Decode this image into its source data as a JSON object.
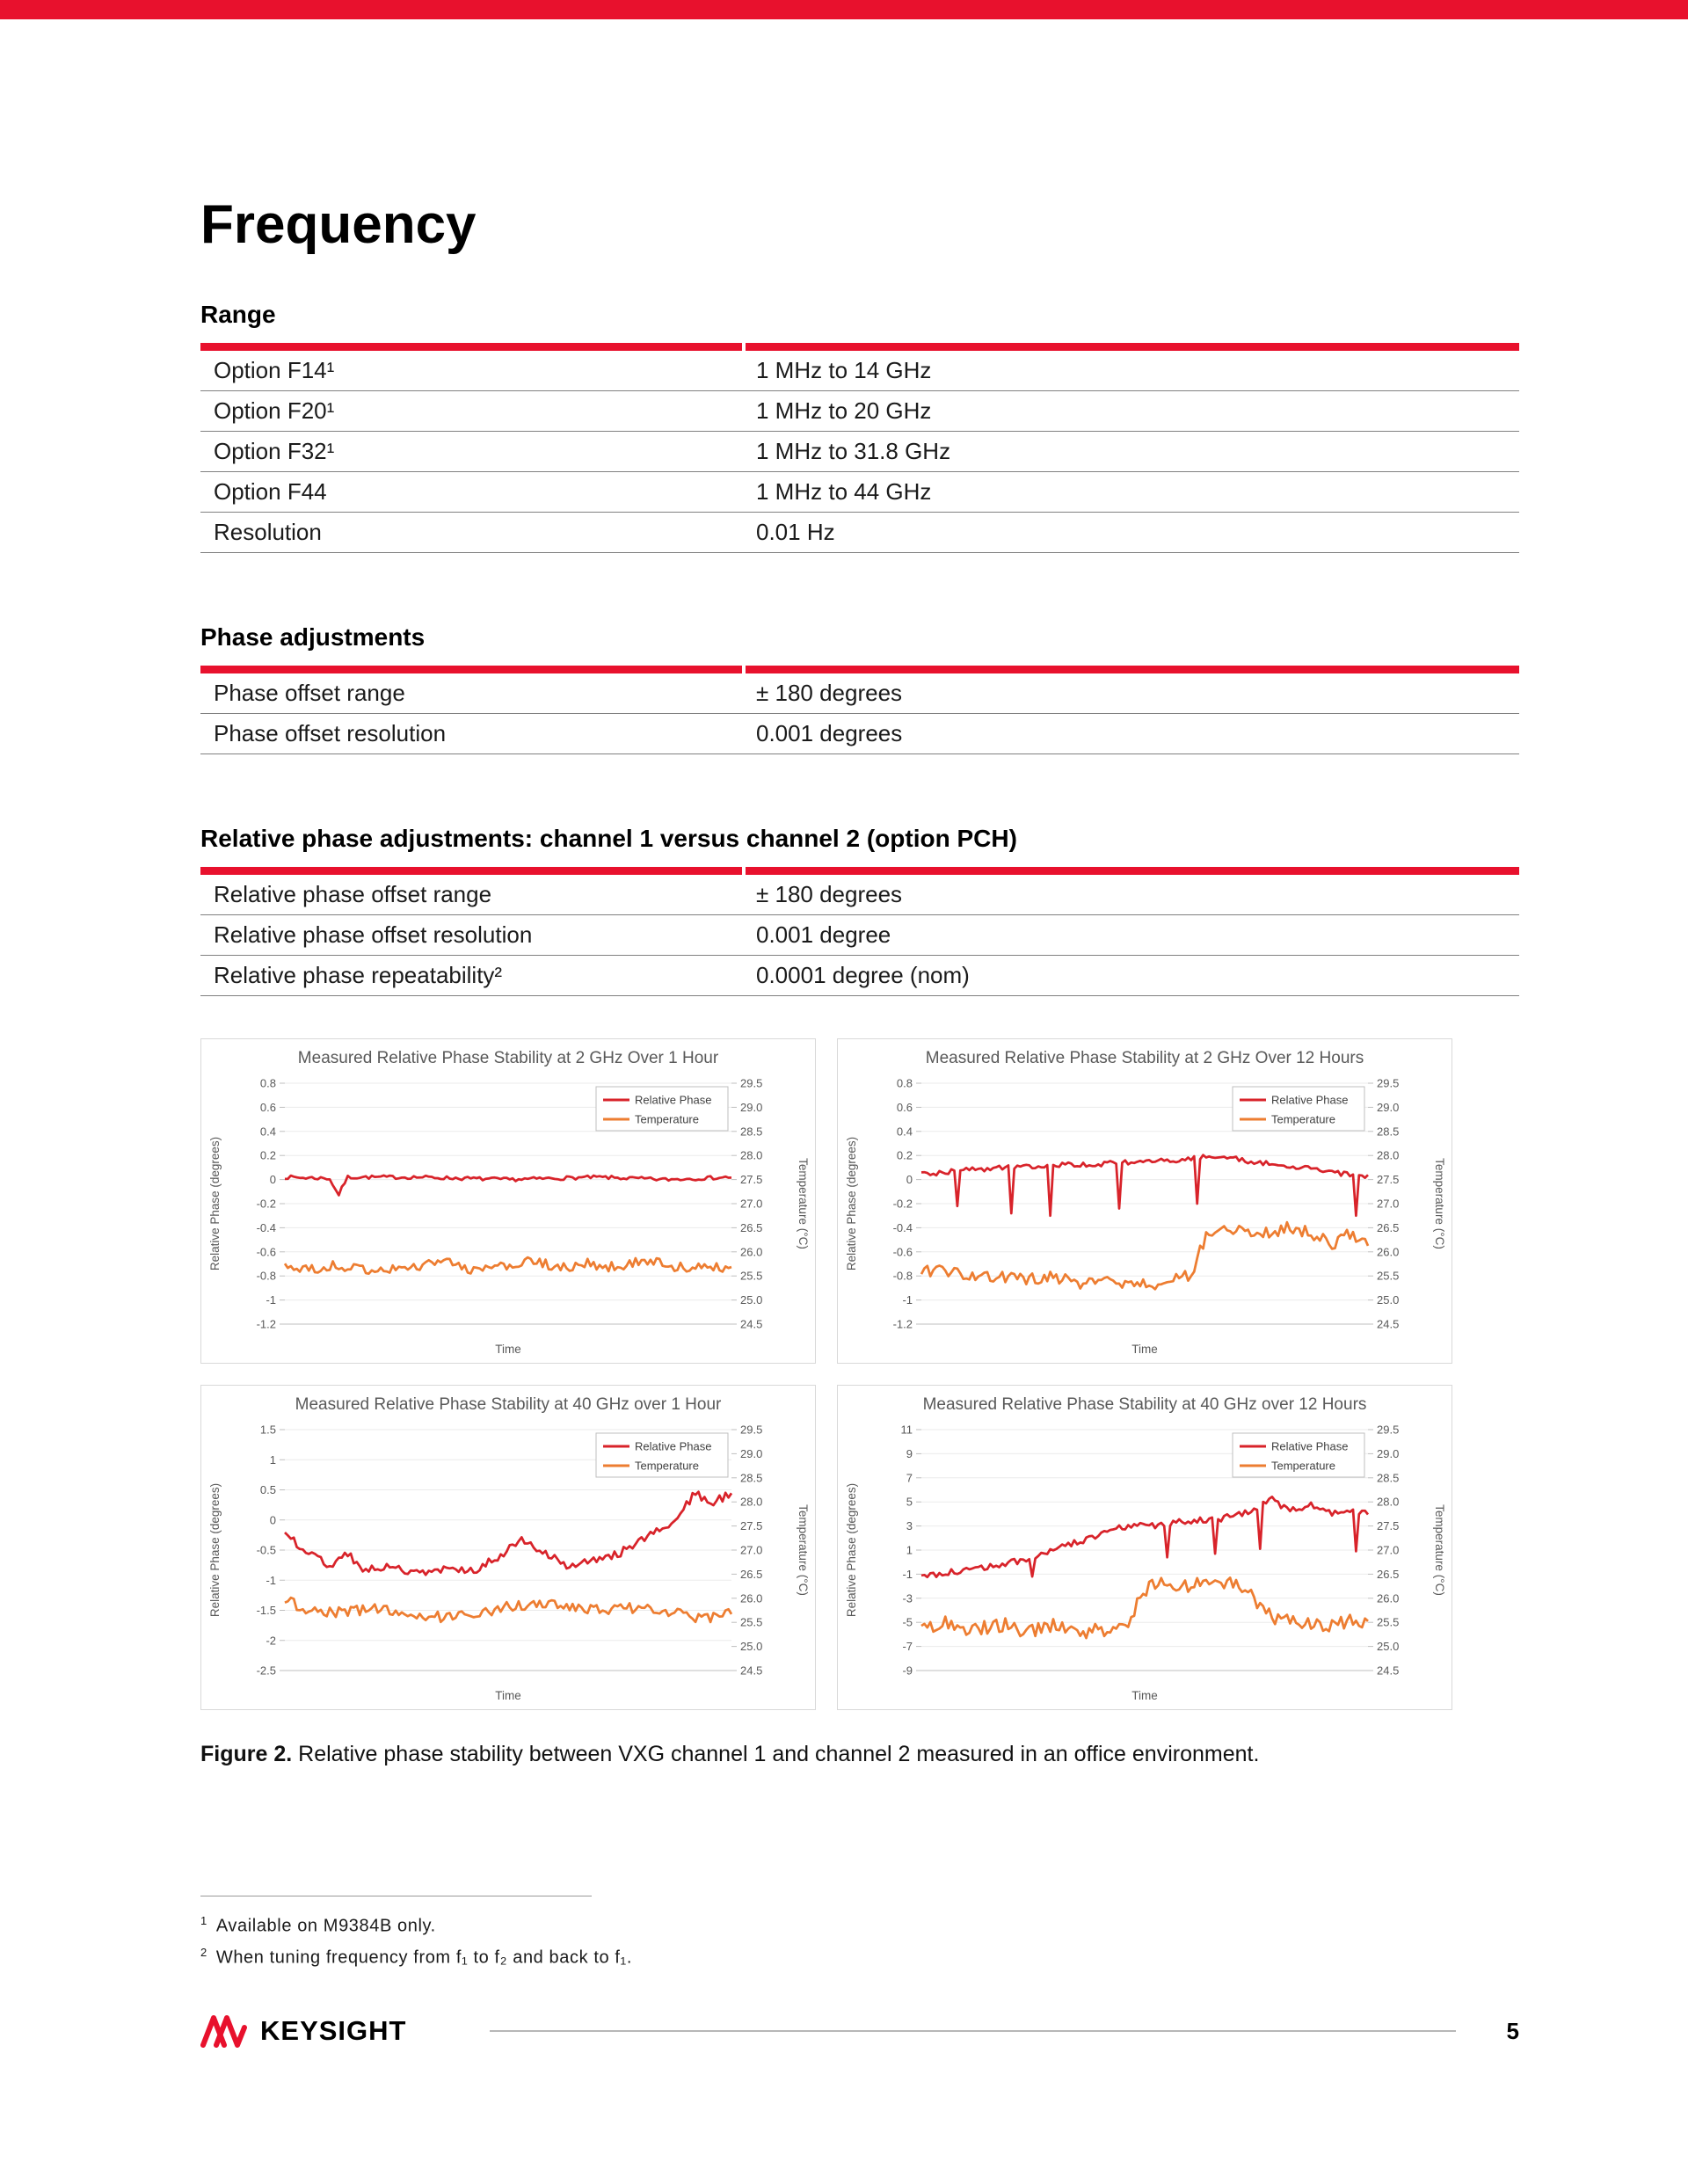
{
  "page": {
    "title": "Frequency",
    "accent_color": "#E8112D"
  },
  "tables": [
    {
      "heading": "Range",
      "rows": [
        {
          "label": "Option F14¹",
          "value": "1 MHz to 14 GHz"
        },
        {
          "label": "Option F20¹",
          "value": "1 MHz to 20 GHz"
        },
        {
          "label": "Option F32¹",
          "value": "1 MHz to 31.8 GHz"
        },
        {
          "label": "Option F44",
          "value": "1 MHz to 44 GHz"
        },
        {
          "label": "Resolution",
          "value": "0.01 Hz"
        }
      ]
    },
    {
      "heading": "Phase adjustments",
      "rows": [
        {
          "label": "Phase offset range",
          "value": "± 180 degrees"
        },
        {
          "label": "Phase offset resolution",
          "value": "0.001 degrees"
        }
      ]
    },
    {
      "heading": "Relative phase adjustments: channel 1 versus channel 2 (option PCH)",
      "rows": [
        {
          "label": "Relative phase offset range",
          "value": "± 180 degrees"
        },
        {
          "label": "Relative phase offset resolution",
          "value": "0.001 degree"
        },
        {
          "label": "Relative phase repeatability²",
          "value": "0.0001 degree (nom)"
        }
      ]
    }
  ],
  "chart_data": [
    {
      "type": "line",
      "title": "Measured Relative Phase Stability at 2 GHz Over 1 Hour",
      "xlabel": "Time",
      "ylabel_left": "Relative Phase (degrees)",
      "ylabel_right": "Temperature (°C)",
      "left_axis": {
        "min": -1.2,
        "max": 0.8,
        "step": 0.2
      },
      "right_axis": {
        "min": 24.5,
        "max": 29.5,
        "step": 0.5
      },
      "legend": [
        "Relative Phase",
        "Temperature"
      ],
      "series": [
        {
          "name": "Relative Phase",
          "axis": "left",
          "color": "#D8232A",
          "noise": 0.015,
          "points": [
            [
              0,
              0.02
            ],
            [
              0.1,
              0.01
            ],
            [
              0.12,
              -0.13
            ],
            [
              0.14,
              0.02
            ],
            [
              0.3,
              0.02
            ],
            [
              0.5,
              0.0
            ],
            [
              0.7,
              0.02
            ],
            [
              0.85,
              0.0
            ],
            [
              1,
              0.02
            ]
          ],
          "spikes": []
        },
        {
          "name": "Temperature",
          "axis": "right",
          "color": "#ED7D31",
          "noise": 0.11,
          "points": [
            [
              0,
              25.7
            ],
            [
              0.06,
              25.62
            ],
            [
              0.12,
              25.72
            ],
            [
              0.18,
              25.6
            ],
            [
              0.22,
              25.68
            ],
            [
              0.27,
              25.6
            ],
            [
              0.33,
              25.85
            ],
            [
              0.38,
              25.72
            ],
            [
              0.44,
              25.6
            ],
            [
              0.5,
              25.72
            ],
            [
              0.56,
              25.8
            ],
            [
              0.62,
              25.65
            ],
            [
              0.68,
              25.75
            ],
            [
              0.74,
              25.68
            ],
            [
              0.8,
              25.85
            ],
            [
              0.86,
              25.72
            ],
            [
              0.92,
              25.65
            ],
            [
              1,
              25.7
            ]
          ],
          "spikes": []
        }
      ]
    },
    {
      "type": "line",
      "title": "Measured Relative Phase Stability at 2 GHz Over 12 Hours",
      "xlabel": "Time",
      "ylabel_left": "Relative Phase (degrees)",
      "ylabel_right": "Temperature (°C)",
      "left_axis": {
        "min": -1.2,
        "max": 0.8,
        "step": 0.2
      },
      "right_axis": {
        "min": 24.5,
        "max": 29.5,
        "step": 0.5
      },
      "legend": [
        "Relative Phase",
        "Temperature"
      ],
      "series": [
        {
          "name": "Relative Phase",
          "axis": "left",
          "color": "#D8232A",
          "noise": 0.02,
          "points": [
            [
              0,
              0.04
            ],
            [
              0.1,
              0.08
            ],
            [
              0.2,
              0.1
            ],
            [
              0.3,
              0.12
            ],
            [
              0.4,
              0.13
            ],
            [
              0.5,
              0.15
            ],
            [
              0.6,
              0.17
            ],
            [
              0.66,
              0.2
            ],
            [
              0.72,
              0.16
            ],
            [
              0.8,
              0.12
            ],
            [
              0.86,
              0.1
            ],
            [
              0.92,
              0.06
            ],
            [
              1,
              0.02
            ]
          ],
          "spikes": [
            [
              0.08,
              -0.22
            ],
            [
              0.2,
              -0.28
            ],
            [
              0.29,
              -0.3
            ],
            [
              0.44,
              -0.24
            ],
            [
              0.62,
              -0.2
            ],
            [
              0.97,
              -0.3
            ]
          ]
        },
        {
          "name": "Temperature",
          "axis": "right",
          "color": "#ED7D31",
          "noise": 0.14,
          "points": [
            [
              0,
              25.6
            ],
            [
              0.08,
              25.55
            ],
            [
              0.16,
              25.5
            ],
            [
              0.24,
              25.4
            ],
            [
              0.3,
              25.5
            ],
            [
              0.36,
              25.3
            ],
            [
              0.42,
              25.45
            ],
            [
              0.48,
              25.25
            ],
            [
              0.54,
              25.4
            ],
            [
              0.6,
              25.5
            ],
            [
              0.64,
              26.35
            ],
            [
              0.7,
              26.45
            ],
            [
              0.76,
              26.4
            ],
            [
              0.82,
              26.5
            ],
            [
              0.88,
              26.35
            ],
            [
              0.92,
              26.15
            ],
            [
              0.96,
              26.4
            ],
            [
              1,
              26.2
            ]
          ],
          "spikes": []
        }
      ]
    },
    {
      "type": "line",
      "title": "Measured Relative Phase Stability at 40 GHz over 1 Hour",
      "xlabel": "Time",
      "ylabel_left": "Relative Phase (degrees)",
      "ylabel_right": "Temperature (°C)",
      "left_axis": {
        "min": -2.5,
        "max": 1.5,
        "step": 0.5
      },
      "right_axis": {
        "min": 24.5,
        "max": 29.5,
        "step": 0.5
      },
      "legend": [
        "Relative Phase",
        "Temperature"
      ],
      "series": [
        {
          "name": "Relative Phase",
          "axis": "left",
          "color": "#D8232A",
          "noise": 0.07,
          "points": [
            [
              0,
              -0.2
            ],
            [
              0.05,
              -0.55
            ],
            [
              0.1,
              -0.75
            ],
            [
              0.14,
              -0.55
            ],
            [
              0.18,
              -0.85
            ],
            [
              0.24,
              -0.75
            ],
            [
              0.3,
              -0.9
            ],
            [
              0.36,
              -0.8
            ],
            [
              0.42,
              -0.85
            ],
            [
              0.48,
              -0.6
            ],
            [
              0.53,
              -0.35
            ],
            [
              0.58,
              -0.5
            ],
            [
              0.63,
              -0.8
            ],
            [
              0.68,
              -0.7
            ],
            [
              0.73,
              -0.6
            ],
            [
              0.78,
              -0.45
            ],
            [
              0.83,
              -0.2
            ],
            [
              0.88,
              0.05
            ],
            [
              0.92,
              0.45
            ],
            [
              0.95,
              0.25
            ],
            [
              1,
              0.45
            ]
          ],
          "spikes": []
        },
        {
          "name": "Temperature",
          "axis": "right",
          "color": "#ED7D31",
          "noise": 0.11,
          "points": [
            [
              0,
              25.95
            ],
            [
              0.06,
              25.75
            ],
            [
              0.12,
              25.7
            ],
            [
              0.2,
              25.78
            ],
            [
              0.28,
              25.68
            ],
            [
              0.36,
              25.6
            ],
            [
              0.44,
              25.72
            ],
            [
              0.52,
              25.85
            ],
            [
              0.58,
              25.92
            ],
            [
              0.64,
              25.8
            ],
            [
              0.72,
              25.75
            ],
            [
              0.8,
              25.82
            ],
            [
              0.88,
              25.68
            ],
            [
              0.94,
              25.58
            ],
            [
              1,
              25.68
            ]
          ],
          "spikes": []
        }
      ]
    },
    {
      "type": "line",
      "title": "Measured Relative Phase Stability at 40 GHz over 12 Hours",
      "xlabel": "Time",
      "ylabel_left": "Relative Phase (degrees)",
      "ylabel_right": "Temperature (°C)",
      "left_axis": {
        "min": -9,
        "max": 11,
        "step": 2
      },
      "right_axis": {
        "min": 24.5,
        "max": 29.5,
        "step": 0.5
      },
      "legend": [
        "Relative Phase",
        "Temperature"
      ],
      "series": [
        {
          "name": "Relative Phase",
          "axis": "left",
          "color": "#D8232A",
          "noise": 0.28,
          "points": [
            [
              0,
              -1.1
            ],
            [
              0.06,
              -0.9
            ],
            [
              0.12,
              -0.6
            ],
            [
              0.18,
              -0.2
            ],
            [
              0.24,
              0.3
            ],
            [
              0.3,
              1.0
            ],
            [
              0.36,
              1.8
            ],
            [
              0.42,
              2.6
            ],
            [
              0.47,
              3.1
            ],
            [
              0.52,
              3.0
            ],
            [
              0.58,
              3.3
            ],
            [
              0.64,
              3.5
            ],
            [
              0.7,
              3.8
            ],
            [
              0.75,
              4.5
            ],
            [
              0.78,
              5.3
            ],
            [
              0.82,
              4.4
            ],
            [
              0.87,
              4.7
            ],
            [
              0.92,
              4.1
            ],
            [
              0.96,
              4.3
            ],
            [
              1,
              4.2
            ]
          ],
          "spikes": [
            [
              0.25,
              -1.2
            ],
            [
              0.55,
              0.4
            ],
            [
              0.66,
              0.7
            ],
            [
              0.76,
              1.1
            ],
            [
              0.97,
              0.9
            ]
          ]
        },
        {
          "name": "Temperature",
          "axis": "right",
          "color": "#ED7D31",
          "noise": 0.16,
          "points": [
            [
              0,
              25.4
            ],
            [
              0.06,
              25.5
            ],
            [
              0.12,
              25.35
            ],
            [
              0.18,
              25.45
            ],
            [
              0.24,
              25.3
            ],
            [
              0.3,
              25.42
            ],
            [
              0.36,
              25.32
            ],
            [
              0.42,
              25.38
            ],
            [
              0.46,
              25.5
            ],
            [
              0.5,
              26.15
            ],
            [
              0.54,
              26.35
            ],
            [
              0.58,
              26.2
            ],
            [
              0.62,
              26.4
            ],
            [
              0.66,
              26.28
            ],
            [
              0.7,
              26.35
            ],
            [
              0.74,
              26.1
            ],
            [
              0.77,
              25.7
            ],
            [
              0.8,
              25.5
            ],
            [
              0.85,
              25.55
            ],
            [
              0.9,
              25.4
            ],
            [
              0.95,
              25.52
            ],
            [
              1,
              25.45
            ]
          ],
          "spikes": []
        }
      ]
    }
  ],
  "figure": {
    "prefix": "Figure 2.",
    "caption": " Relative phase stability between VXG channel 1 and channel 2 measured in an office environment."
  },
  "footnotes": [
    {
      "marker": "1",
      "text": "Available on M9384B only."
    },
    {
      "marker": "2",
      "text": "When tuning frequency from f₁ to f₂ and back to f₁."
    }
  ],
  "footer": {
    "brand": "KEYSIGHT",
    "page_number": "5"
  }
}
